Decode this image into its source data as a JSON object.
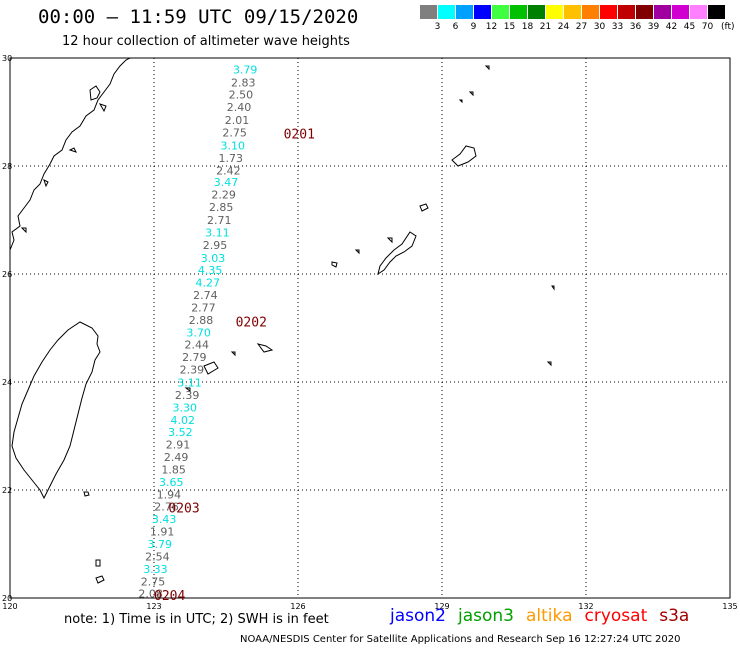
{
  "header": {
    "title": "00:00 – 11:59 UTC 09/15/2020",
    "subtitle": "12 hour collection of altimeter wave heights"
  },
  "legend": {
    "unit": "(ft)",
    "bins": [
      {
        "label": "3",
        "color": "#7f7f7f"
      },
      {
        "label": "6",
        "color": "#00ffff"
      },
      {
        "label": "9",
        "color": "#00a0ff"
      },
      {
        "label": "12",
        "color": "#0000ff"
      },
      {
        "label": "15",
        "color": "#40ff40"
      },
      {
        "label": "18",
        "color": "#00c000"
      },
      {
        "label": "21",
        "color": "#008000"
      },
      {
        "label": "24",
        "color": "#ffff00"
      },
      {
        "label": "27",
        "color": "#ffc000"
      },
      {
        "label": "30",
        "color": "#ff8000"
      },
      {
        "label": "33",
        "color": "#ff0000"
      },
      {
        "label": "36",
        "color": "#c00000"
      },
      {
        "label": "39",
        "color": "#800000"
      },
      {
        "label": "42",
        "color": "#a000a0"
      },
      {
        "label": "45",
        "color": "#d000d0"
      },
      {
        "label": "70",
        "color": "#ff80ff"
      },
      {
        "label": "",
        "color": "#000000"
      }
    ]
  },
  "map": {
    "lon_range": [
      120,
      135
    ],
    "lat_range": [
      20,
      30
    ],
    "lon_ticks": [
      "120",
      "123",
      "126",
      "129",
      "132",
      "135"
    ],
    "lat_ticks": [
      "20",
      "22",
      "24",
      "26",
      "28",
      "30"
    ],
    "cyan_color": "#00e0e0",
    "gray_color": "#606060"
  },
  "wave_heights": [
    {
      "text": "3.79",
      "lon": 124.9,
      "lat": 29.79,
      "color": "cyan"
    },
    {
      "text": "2.83",
      "lon": 124.86,
      "lat": 29.55,
      "color": "gray"
    },
    {
      "text": "2.50",
      "lon": 124.81,
      "lat": 29.32,
      "color": "gray"
    },
    {
      "text": "2.40",
      "lon": 124.77,
      "lat": 29.09,
      "color": "gray"
    },
    {
      "text": "2.01",
      "lon": 124.73,
      "lat": 28.85,
      "color": "gray"
    },
    {
      "text": "2.75",
      "lon": 124.68,
      "lat": 28.62,
      "color": "gray"
    },
    {
      "text": "3.10",
      "lon": 124.64,
      "lat": 28.38,
      "color": "cyan"
    },
    {
      "text": "1.73",
      "lon": 124.6,
      "lat": 28.15,
      "color": "gray"
    },
    {
      "text": "2.42",
      "lon": 124.55,
      "lat": 27.92,
      "color": "gray"
    },
    {
      "text": "3.47",
      "lon": 124.5,
      "lat": 27.7,
      "color": "cyan"
    },
    {
      "text": "2.29",
      "lon": 124.45,
      "lat": 27.47,
      "color": "gray"
    },
    {
      "text": "2.85",
      "lon": 124.4,
      "lat": 27.24,
      "color": "gray"
    },
    {
      "text": "2.71",
      "lon": 124.36,
      "lat": 27.0,
      "color": "gray"
    },
    {
      "text": "3.11",
      "lon": 124.32,
      "lat": 26.77,
      "color": "cyan"
    },
    {
      "text": "2.95",
      "lon": 124.27,
      "lat": 26.54,
      "color": "gray"
    },
    {
      "text": "3.03",
      "lon": 124.23,
      "lat": 26.3,
      "color": "cyan"
    },
    {
      "text": "4.35",
      "lon": 124.17,
      "lat": 26.07,
      "color": "cyan"
    },
    {
      "text": "4.27",
      "lon": 124.12,
      "lat": 25.84,
      "color": "cyan"
    },
    {
      "text": "2.74",
      "lon": 124.07,
      "lat": 25.61,
      "color": "gray"
    },
    {
      "text": "2.77",
      "lon": 124.03,
      "lat": 25.38,
      "color": "gray"
    },
    {
      "text": "2.88",
      "lon": 123.98,
      "lat": 25.15,
      "color": "gray"
    },
    {
      "text": "3.70",
      "lon": 123.93,
      "lat": 24.92,
      "color": "cyan"
    },
    {
      "text": "2.44",
      "lon": 123.89,
      "lat": 24.69,
      "color": "gray"
    },
    {
      "text": "2.79",
      "lon": 123.84,
      "lat": 24.46,
      "color": "gray"
    },
    {
      "text": "2.39",
      "lon": 123.79,
      "lat": 24.23,
      "color": "gray"
    },
    {
      "text": "3.11",
      "lon": 123.74,
      "lat": 23.99,
      "color": "cyan"
    },
    {
      "text": "2.39",
      "lon": 123.69,
      "lat": 23.76,
      "color": "gray"
    },
    {
      "text": "3.30",
      "lon": 123.64,
      "lat": 23.53,
      "color": "cyan"
    },
    {
      "text": "4.02",
      "lon": 123.6,
      "lat": 23.3,
      "color": "cyan"
    },
    {
      "text": "3.52",
      "lon": 123.55,
      "lat": 23.07,
      "color": "cyan"
    },
    {
      "text": "2.91",
      "lon": 123.5,
      "lat": 22.84,
      "color": "gray"
    },
    {
      "text": "2.49",
      "lon": 123.46,
      "lat": 22.61,
      "color": "gray"
    },
    {
      "text": "1.85",
      "lon": 123.41,
      "lat": 22.38,
      "color": "gray"
    },
    {
      "text": "3.65",
      "lon": 123.36,
      "lat": 22.15,
      "color": "cyan"
    },
    {
      "text": "1.94",
      "lon": 123.31,
      "lat": 21.92,
      "color": "gray"
    },
    {
      "text": "2.76",
      "lon": 123.26,
      "lat": 21.69,
      "color": "gray"
    },
    {
      "text": "3.43",
      "lon": 123.21,
      "lat": 21.46,
      "color": "cyan"
    },
    {
      "text": "1.91",
      "lon": 123.17,
      "lat": 21.23,
      "color": "gray"
    },
    {
      "text": "3.79",
      "lon": 123.12,
      "lat": 21.0,
      "color": "cyan"
    },
    {
      "text": "2.54",
      "lon": 123.07,
      "lat": 20.77,
      "color": "gray"
    },
    {
      "text": "3.33",
      "lon": 123.03,
      "lat": 20.54,
      "color": "cyan"
    },
    {
      "text": "2.75",
      "lon": 122.98,
      "lat": 20.31,
      "color": "gray"
    },
    {
      "text": "2.08",
      "lon": 122.93,
      "lat": 20.08,
      "color": "gray"
    }
  ],
  "pass_labels": [
    {
      "text": "0201",
      "lon": 125.7,
      "lat": 28.6
    },
    {
      "text": "0202",
      "lon": 124.7,
      "lat": 25.12
    },
    {
      "text": "0203",
      "lon": 123.3,
      "lat": 21.68
    },
    {
      "text": "0204",
      "lon": 123.0,
      "lat": 20.06
    }
  ],
  "footer": {
    "note": "note: 1) Time is in UTC; 2) SWH is in feet",
    "satellites": [
      {
        "name": "jason2",
        "color": "#0000ff"
      },
      {
        "name": "jason3",
        "color": "#00a000"
      },
      {
        "name": "altika",
        "color": "#ff9900"
      },
      {
        "name": "cryosat",
        "color": "#ff0000"
      },
      {
        "name": "s3a",
        "color": "#a00000"
      }
    ],
    "credit": "NOAA/NESDIS Center for Satellite Applications and Research   Sep 16 12:27:24 UTC 2020"
  }
}
